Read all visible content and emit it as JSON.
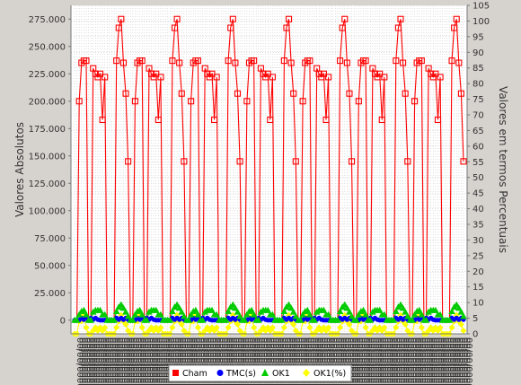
{
  "chart_data": {
    "type": "line",
    "ylabel": "Valores Absolutos",
    "y2label": "Valores em termos Percentuais",
    "ylim": [
      -12500,
      287500
    ],
    "y_ticks": [
      0,
      25000,
      50000,
      75000,
      100000,
      125000,
      150000,
      175000,
      200000,
      225000,
      250000,
      275000
    ],
    "y_tick_labels": [
      "0",
      "25.000",
      "50.000",
      "75.000",
      "100.000",
      "125.000",
      "150.000",
      "175.000",
      "200.000",
      "225.000",
      "250.000",
      "275.000"
    ],
    "y2lim": [
      0,
      105
    ],
    "y2_ticks": [
      0,
      5,
      10,
      15,
      20,
      25,
      30,
      35,
      40,
      45,
      50,
      55,
      60,
      65,
      70,
      75,
      80,
      85,
      90,
      95,
      100,
      105
    ],
    "y2_tick_labels": [
      "0",
      "5",
      "10",
      "15",
      "20",
      "25",
      "30",
      "35",
      "40",
      "45",
      "50",
      "55",
      "60",
      "65",
      "70",
      "75",
      "80",
      "85",
      "90",
      "95",
      "100",
      "105"
    ],
    "x_points": 168,
    "period": 24,
    "x_tick_labels_legible": false,
    "grid": true,
    "legend_position": "bottom",
    "series": [
      {
        "name": "Cham",
        "axis": "left",
        "color": "#ff0000",
        "marker": "square",
        "values": [
          0,
          0,
          0,
          0,
          0,
          0,
          0,
          0,
          0,
          0,
          0,
          0,
          0,
          0,
          0,
          0,
          0,
          0,
          0,
          0,
          0,
          0,
          0,
          0
        ]
      },
      {
        "name": "TMC(s)",
        "axis": "left",
        "color": "#0000ff",
        "marker": "circle",
        "values": [
          0
        ]
      },
      {
        "name": "OK1",
        "axis": "left",
        "color": "#00cc00",
        "marker": "triangle",
        "values": [
          0
        ]
      },
      {
        "name": "OK1(%)",
        "axis": "right",
        "color": "#ffff00",
        "marker": "diamond",
        "values": [
          0
        ]
      }
    ],
    "day_pattern": {
      "cham": [
        0,
        0,
        200000,
        235000,
        237000,
        237000,
        0,
        0,
        230000,
        225000,
        222000,
        225000,
        183000,
        222000,
        0,
        0,
        0,
        0,
        237000,
        267000,
        275000,
        235000,
        207000,
        145000
      ],
      "tmc": [
        0,
        0,
        0,
        2000,
        500,
        2000,
        500,
        2000,
        500,
        2000,
        500,
        0,
        0,
        0,
        0,
        0,
        0,
        0,
        2000,
        500,
        2000,
        500,
        2000,
        500
      ],
      "ok1": [
        0,
        0,
        5000,
        8000,
        9000,
        5000,
        0,
        0,
        7500,
        9000,
        9000,
        9000,
        5000,
        5000,
        0,
        0,
        0,
        0,
        8000,
        12000,
        14000,
        11000,
        7500,
        3500
      ],
      "ok1pct": [
        0,
        0,
        4,
        4,
        6,
        2,
        0,
        0,
        1,
        2,
        1,
        2,
        1,
        2,
        0,
        0,
        0,
        0,
        2,
        4,
        6,
        4,
        3,
        1
      ]
    }
  },
  "legend": {
    "items": [
      {
        "label": "Cham",
        "color": "#ff0000",
        "icon": "red-square-icon"
      },
      {
        "label": "TMC(s)",
        "color": "#0000ff",
        "icon": "blue-circle-icon"
      },
      {
        "label": "OK1",
        "color": "#00cc00",
        "icon": "green-triangle-icon"
      },
      {
        "label": "OK1(%)",
        "color": "#ffff00",
        "icon": "yellow-diamond-icon"
      }
    ]
  },
  "colors": {
    "background": "#d6d3ce",
    "plot_background": "#ffffff",
    "grid": "#c8c8c8"
  }
}
